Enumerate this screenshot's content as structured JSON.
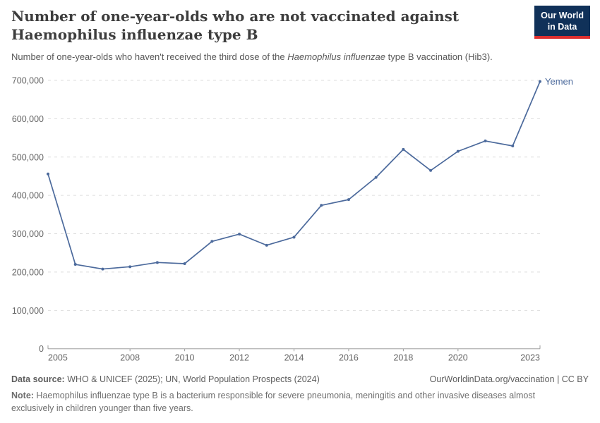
{
  "header": {
    "title": "Number of one-year-olds who are not vaccinated against Haemophilus influenzae type B",
    "subtitle_pre": "Number of one-year-olds who haven't received the third dose of the ",
    "subtitle_italic": "Haemophilus influenzae",
    "subtitle_post": " type B vaccination (Hib3)."
  },
  "logo": {
    "line1": "Our World",
    "line2": "in Data",
    "bg_color": "#103159",
    "accent_color": "#dc2f2f"
  },
  "colors": {
    "line": "#4C6A9C",
    "grid": "#dddddd",
    "axis": "#9e9e9e",
    "tick_text": "#666666",
    "title_text": "#3d3d3d"
  },
  "chart_data": {
    "type": "line",
    "title": "Number of one-year-olds who are not vaccinated against Haemophilus influenzae type B",
    "xlabel": "",
    "ylabel": "",
    "x": [
      2005,
      2006,
      2007,
      2008,
      2009,
      2010,
      2011,
      2012,
      2013,
      2014,
      2015,
      2016,
      2017,
      2018,
      2019,
      2020,
      2021,
      2022,
      2023
    ],
    "series": [
      {
        "name": "Yemen",
        "values": [
          456000,
          220000,
          208000,
          214000,
          225000,
          222000,
          280000,
          299000,
          270000,
          291000,
          374000,
          389000,
          447000,
          520000,
          465000,
          515000,
          542000,
          529000,
          697000
        ]
      }
    ],
    "ylim": [
      0,
      700000
    ],
    "yticks": [
      0,
      100000,
      200000,
      300000,
      400000,
      500000,
      600000,
      700000
    ],
    "xticks": [
      2005,
      2008,
      2010,
      2012,
      2014,
      2016,
      2018,
      2020,
      2023
    ],
    "grid": "horizontal-dashed",
    "legend_position": "end-of-line-label",
    "line_color": "#4C6A9C"
  },
  "footer": {
    "datasource_label": "Data source:",
    "datasource_text": " WHO & UNICEF (2025); UN, World Population Prospects (2024)",
    "license_link": "OurWorldinData.org/vaccination | CC BY",
    "note_label": "Note:",
    "note_text": " Haemophilus influenzae type B is a bacterium responsible for severe pneumonia, meningitis and other invasive diseases almost exclusively in children younger than five years."
  }
}
